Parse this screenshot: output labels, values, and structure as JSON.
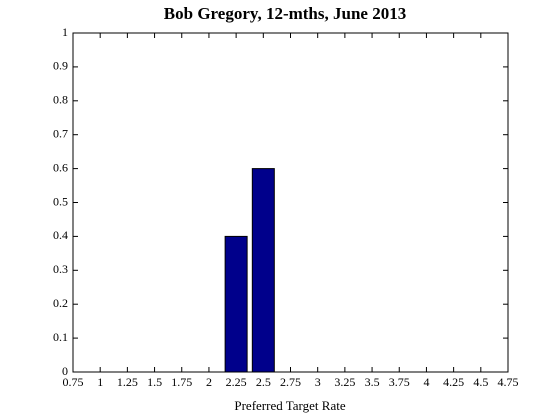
{
  "chart_data": {
    "type": "bar",
    "title": "Bob Gregory, 12-mths, June 2013",
    "x_label": "Preferred Target Rate",
    "x": [
      2.25,
      2.5
    ],
    "values": [
      0.4,
      0.6
    ],
    "color": "#00008b",
    "xlim": [
      0.75,
      4.75
    ],
    "xticks": [
      0.75,
      1,
      1.25,
      1.5,
      1.75,
      2,
      2.25,
      2.5,
      2.75,
      3,
      3.25,
      3.5,
      3.75,
      4,
      4.25,
      4.5,
      4.75
    ],
    "ylim": [
      0,
      1
    ],
    "yticks": [
      0,
      0.1,
      0.2,
      0.3,
      0.4,
      0.5,
      0.6,
      0.7,
      0.8,
      0.9,
      1
    ],
    "grid": false
  }
}
